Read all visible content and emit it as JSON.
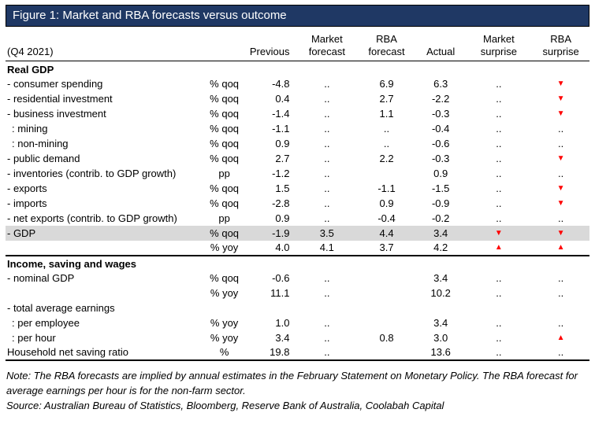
{
  "title": "Figure 1: Market and RBA forecasts versus outcome",
  "colors": {
    "title_bg": "#1F3864",
    "title_text": "#FFFFFF",
    "highlight_row": "#D9D9D9",
    "surprise_marker": "#FF0000"
  },
  "table": {
    "period": "(Q4 2021)",
    "columns": [
      {
        "lines": [
          "Previous"
        ]
      },
      {
        "lines": [
          "Market",
          "forecast"
        ]
      },
      {
        "lines": [
          "RBA",
          "forecast"
        ]
      },
      {
        "lines": [
          "Actual"
        ]
      },
      {
        "lines": [
          "Market",
          "surprise"
        ]
      },
      {
        "lines": [
          "RBA",
          "surprise"
        ]
      }
    ],
    "rows": [
      {
        "type": "section",
        "label": "Real GDP"
      },
      {
        "type": "data",
        "label": "- consumer spending",
        "unit": "% qoq",
        "previous": "-4.8",
        "market_forecast": "..",
        "rba_forecast": "6.9",
        "actual": "6.3",
        "market_surprise": "..",
        "rba_surprise": "▼"
      },
      {
        "type": "data",
        "label": "- residential investment",
        "unit": "% qoq",
        "previous": "0.4",
        "market_forecast": "..",
        "rba_forecast": "2.7",
        "actual": "-2.2",
        "market_surprise": "..",
        "rba_surprise": "▼"
      },
      {
        "type": "data",
        "label": "- business investment",
        "unit": "% qoq",
        "previous": "-1.4",
        "market_forecast": "..",
        "rba_forecast": "1.1",
        "actual": "-0.3",
        "market_surprise": "..",
        "rba_surprise": "▼"
      },
      {
        "type": "data",
        "label": ": mining",
        "indent": 1,
        "unit": "% qoq",
        "previous": "-1.1",
        "market_forecast": "..",
        "rba_forecast": "..",
        "actual": "-0.4",
        "market_surprise": "..",
        "rba_surprise": ".."
      },
      {
        "type": "data",
        "label": ": non-mining",
        "indent": 1,
        "unit": "% qoq",
        "previous": "0.9",
        "market_forecast": "..",
        "rba_forecast": "..",
        "actual": "-0.6",
        "market_surprise": "..",
        "rba_surprise": ".."
      },
      {
        "type": "data",
        "label": "- public demand",
        "unit": "% qoq",
        "previous": "2.7",
        "market_forecast": "..",
        "rba_forecast": "2.2",
        "actual": "-0.3",
        "market_surprise": "..",
        "rba_surprise": "▼"
      },
      {
        "type": "data",
        "label": "- inventories (contrib. to GDP growth)",
        "unit": "pp",
        "previous": "-1.2",
        "market_forecast": "..",
        "rba_forecast": "",
        "actual": "0.9",
        "market_surprise": "..",
        "rba_surprise": ".."
      },
      {
        "type": "data",
        "label": "- exports",
        "unit": "% qoq",
        "previous": "1.5",
        "market_forecast": "..",
        "rba_forecast": "-1.1",
        "actual": "-1.5",
        "market_surprise": "..",
        "rba_surprise": "▼"
      },
      {
        "type": "data",
        "label": "- imports",
        "unit": "% qoq",
        "previous": "-2.8",
        "market_forecast": "..",
        "rba_forecast": "0.9",
        "actual": "-0.9",
        "market_surprise": "..",
        "rba_surprise": "▼"
      },
      {
        "type": "data",
        "label": "- net exports (contrib. to GDP growth)",
        "unit": "pp",
        "previous": "0.9",
        "market_forecast": "..",
        "rba_forecast": "-0.4",
        "actual": "-0.2",
        "market_surprise": "..",
        "rba_surprise": ".."
      },
      {
        "type": "data",
        "label": "- GDP",
        "unit": "% qoq",
        "previous": "-1.9",
        "market_forecast": "3.5",
        "rba_forecast": "4.4",
        "actual": "3.4",
        "market_surprise": "▼",
        "rba_surprise": "▼",
        "highlight": true
      },
      {
        "type": "data",
        "label": "",
        "unit": "% yoy",
        "previous": "4.0",
        "market_forecast": "4.1",
        "rba_forecast": "3.7",
        "actual": "4.2",
        "market_surprise": "▲",
        "rba_surprise": "▲"
      },
      {
        "type": "section",
        "label": "Income, saving and wages",
        "rule_above": true
      },
      {
        "type": "data",
        "label": "- nominal GDP",
        "unit": "% qoq",
        "previous": "-0.6",
        "market_forecast": "..",
        "rba_forecast": "",
        "actual": "3.4",
        "market_surprise": "..",
        "rba_surprise": ".."
      },
      {
        "type": "data",
        "label": "",
        "unit": "% yoy",
        "previous": "11.1",
        "market_forecast": "..",
        "rba_forecast": "",
        "actual": "10.2",
        "market_surprise": "..",
        "rba_surprise": ".."
      },
      {
        "type": "data",
        "label": "- total average earnings",
        "unit": "",
        "previous": "",
        "market_forecast": "",
        "rba_forecast": "",
        "actual": "",
        "market_surprise": "",
        "rba_surprise": ""
      },
      {
        "type": "data",
        "label": ": per employee",
        "indent": 1,
        "unit": "% yoy",
        "previous": "1.0",
        "market_forecast": "..",
        "rba_forecast": "",
        "actual": "3.4",
        "market_surprise": "..",
        "rba_surprise": ".."
      },
      {
        "type": "data",
        "label": ": per hour",
        "indent": 1,
        "unit": "% yoy",
        "previous": "3.4",
        "market_forecast": "..",
        "rba_forecast": "0.8",
        "actual": "3.0",
        "market_surprise": "..",
        "rba_surprise": "▲"
      },
      {
        "type": "data",
        "label": "Household net saving ratio",
        "unit": "%",
        "previous": "19.8",
        "market_forecast": "..",
        "rba_forecast": "",
        "actual": "13.6",
        "market_surprise": "..",
        "rba_surprise": "..",
        "rule_below": true
      }
    ]
  },
  "notes": {
    "note": "Note: The RBA forecasts are implied by annual estimates in the February Statement on Monetary Policy. The RBA forecast for average earnings per hour is for the non-farm sector.",
    "source": "Source: Australian Bureau of Statistics, Bloomberg, Reserve Bank of Australia, Coolabah Capital"
  }
}
